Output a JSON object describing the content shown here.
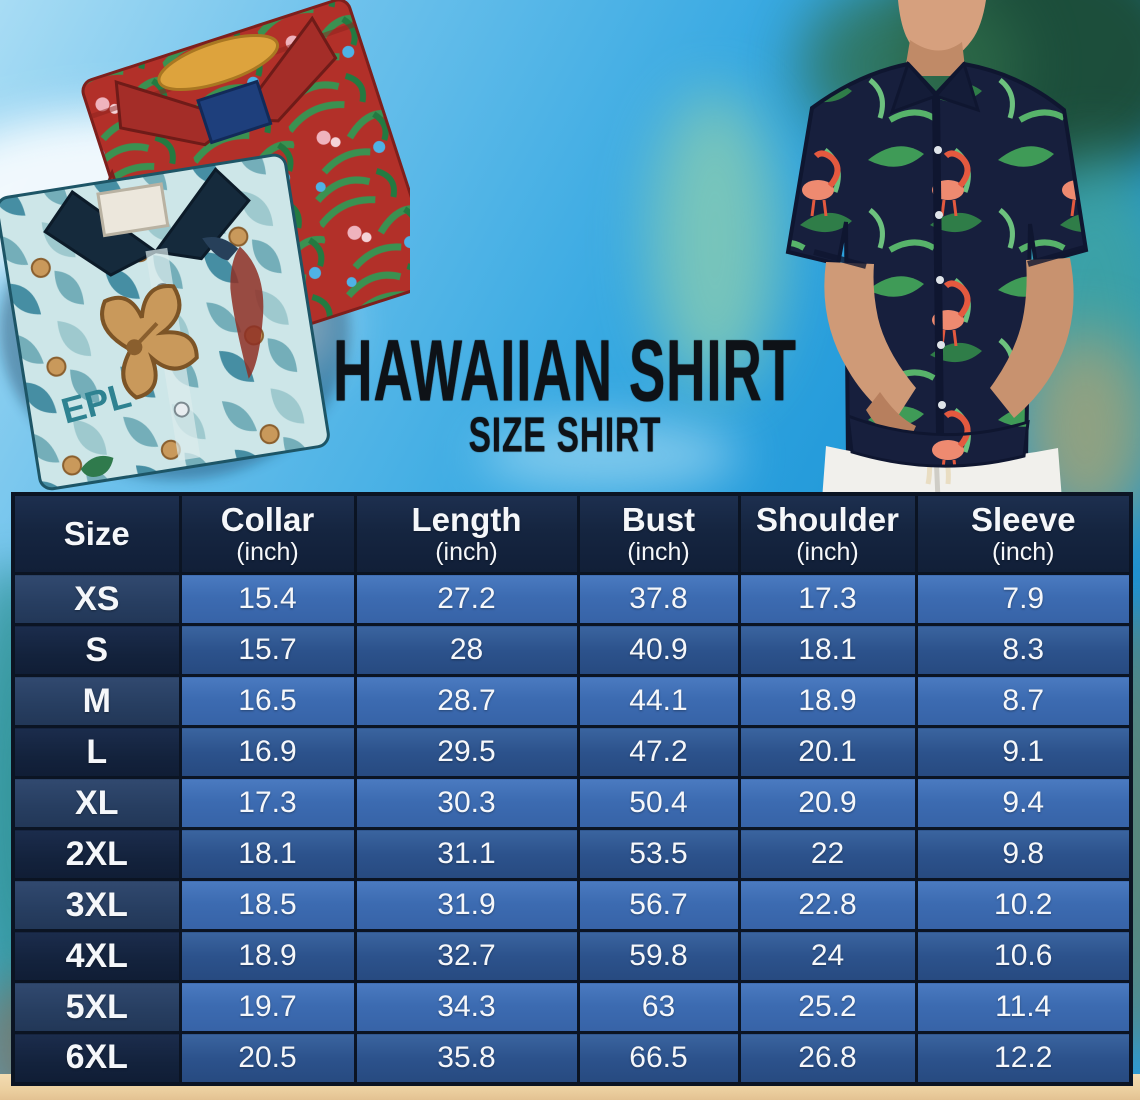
{
  "title": {
    "line1": "HAWAIIAN SHIRT",
    "line2": "SIZE SHIRT"
  },
  "table": {
    "columns": [
      {
        "label": "Size",
        "unit": ""
      },
      {
        "label": "Collar",
        "unit": "(inch)"
      },
      {
        "label": "Length",
        "unit": "(inch)"
      },
      {
        "label": "Bust",
        "unit": "(inch)"
      },
      {
        "label": "Shoulder",
        "unit": "(inch)"
      },
      {
        "label": "Sleeve",
        "unit": "(inch)"
      }
    ],
    "rows": [
      {
        "size": "XS",
        "values": [
          "15.4",
          "27.2",
          "37.8",
          "17.3",
          "7.9"
        ]
      },
      {
        "size": "S",
        "values": [
          "15.7",
          "28",
          "40.9",
          "18.1",
          "8.3"
        ]
      },
      {
        "size": "M",
        "values": [
          "16.5",
          "28.7",
          "44.1",
          "18.9",
          "8.7"
        ]
      },
      {
        "size": "L",
        "values": [
          "16.9",
          "29.5",
          "47.2",
          "20.1",
          "9.1"
        ]
      },
      {
        "size": "XL",
        "values": [
          "17.3",
          "30.3",
          "50.4",
          "20.9",
          "9.4"
        ]
      },
      {
        "size": "2XL",
        "values": [
          "18.1",
          "31.1",
          "53.5",
          "22",
          "9.8"
        ]
      },
      {
        "size": "3XL",
        "values": [
          "18.5",
          "31.9",
          "56.7",
          "22.8",
          "10.2"
        ]
      },
      {
        "size": "4XL",
        "values": [
          "18.9",
          "32.7",
          "59.8",
          "24",
          "10.6"
        ]
      },
      {
        "size": "5XL",
        "values": [
          "19.7",
          "34.3",
          "63",
          "25.2",
          "11.4"
        ]
      },
      {
        "size": "6XL",
        "values": [
          "20.5",
          "35.8",
          "66.5",
          "26.8",
          "12.2"
        ]
      }
    ]
  },
  "shirts": {
    "print_text": "EPL"
  },
  "colors": {
    "header_bg": "#13223c",
    "row_light_cell": "#3c6bb1",
    "row_dark_cell": "#2c528c",
    "size_col_light": "#273e61",
    "size_col_dark": "#13223c",
    "grid_border": "#0b1423",
    "title_text": "#0e1217",
    "table_text": "#f5f7fa",
    "sky": "#2ba0dd",
    "sand": "#ecd0a0"
  }
}
